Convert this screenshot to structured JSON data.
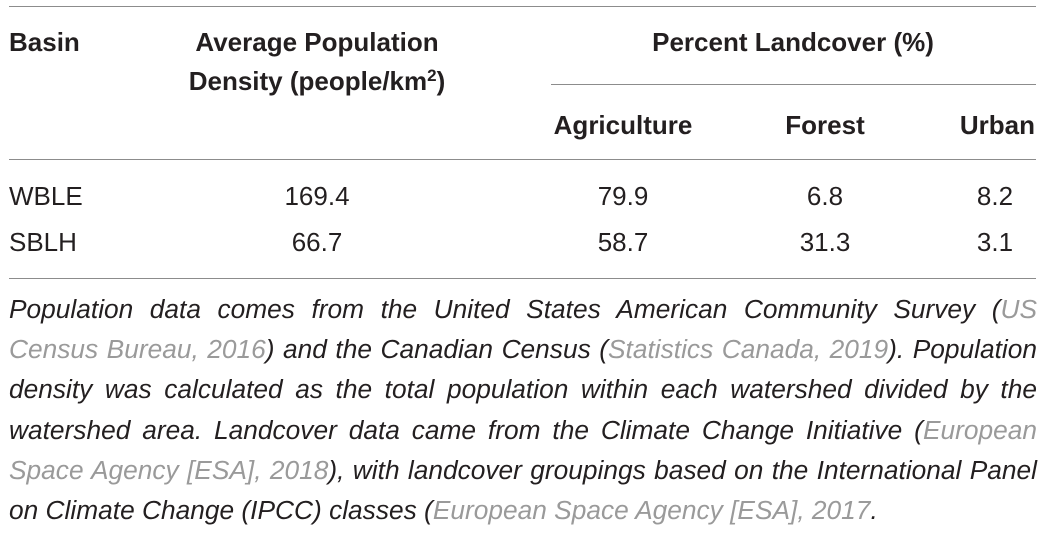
{
  "table": {
    "headers": {
      "basin": "Basin",
      "density_line1": "Average Population",
      "density_line2_prefix": "Density (people/km",
      "density_line2_sup": "2",
      "density_line2_suffix": ")",
      "landcover_group": "Percent Landcover (%)",
      "agriculture": "Agriculture",
      "forest": "Forest",
      "urban": "Urban"
    },
    "rows": [
      {
        "basin": "WBLE",
        "density": "169.4",
        "agriculture": "79.9",
        "forest": "6.8",
        "urban": "8.2"
      },
      {
        "basin": "SBLH",
        "density": "66.7",
        "agriculture": "58.7",
        "forest": "31.3",
        "urban": "3.1"
      }
    ]
  },
  "footnote": {
    "t1": "Population data comes from the United States American Community Survey (",
    "r1": "US Census Bureau, 2016",
    "t2": ") and the Canadian Census (",
    "r2": "Statistics Canada, 2019",
    "t3": "). Population density was calculated as the total population within each watershed divided by the watershed area. Landcover data came from the Climate Change Initiative (",
    "r3": "European Space Agency [ESA], 2018",
    "t4": "), with landcover groupings based on the International Panel on Climate Change (IPCC) classes (",
    "r4": "European Space Agency [ESA], 2017",
    "t5": "."
  },
  "colors": {
    "text": "#231f20",
    "rule": "#8c8c8c",
    "reference": "#9a9a9a"
  }
}
